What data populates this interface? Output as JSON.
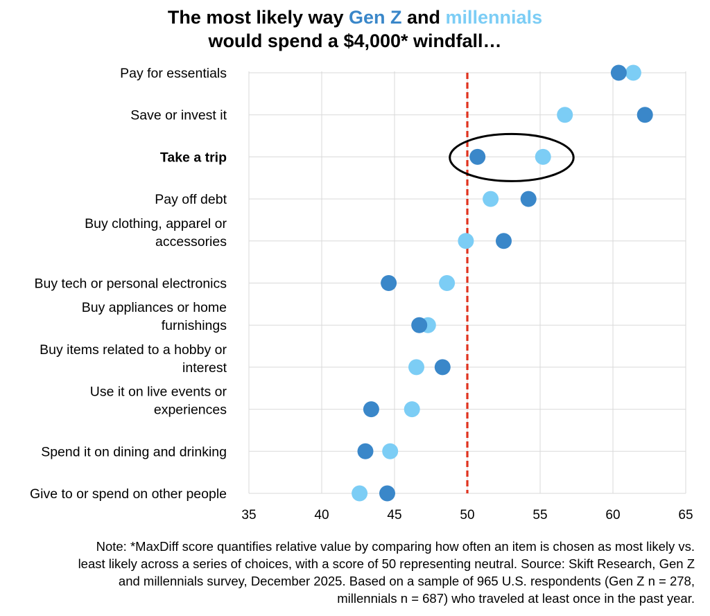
{
  "title": {
    "line1_prefix": "The most likely way ",
    "genz": "Gen Z",
    "and": " and ",
    "millennials": "millennials",
    "line2": "would spend a $4,000* windfall…"
  },
  "colors": {
    "genz": "#3A87C9",
    "millennials": "#7CCDF5",
    "neutral_line": "#E0321E",
    "grid": "#D9D9D9"
  },
  "chart_data": {
    "type": "scatter",
    "title": "The most likely way Gen Z and millennials would spend a $4,000* windfall…",
    "xlim": [
      35,
      65
    ],
    "xticks": [
      "35",
      "40",
      "45",
      "50",
      "55",
      "60",
      "65"
    ],
    "grid": true,
    "neutral_line": 50,
    "highlight_category": "Take a trip",
    "categories": [
      [
        "Pay for essentials"
      ],
      [
        "Save or invest it"
      ],
      [
        "Take a trip"
      ],
      [
        "Pay off debt"
      ],
      [
        "Buy clothing, apparel or",
        "accessories"
      ],
      [
        "Buy tech or personal electronics"
      ],
      [
        "Buy appliances or home",
        "furnishings"
      ],
      [
        "Buy items related to a hobby or",
        "interest"
      ],
      [
        "Use it on live events or",
        "experiences"
      ],
      [
        "Spend it on dining and drinking"
      ],
      [
        "Give to or spend on other people"
      ]
    ],
    "series": [
      {
        "name": "millennials",
        "color": "#7CCDF5",
        "values": [
          61.4,
          56.7,
          55.2,
          51.6,
          49.9,
          48.6,
          47.3,
          46.5,
          46.2,
          44.7,
          42.6
        ]
      },
      {
        "name": "Gen Z",
        "color": "#3A87C9",
        "values": [
          60.4,
          62.2,
          50.7,
          54.2,
          52.5,
          44.6,
          46.7,
          48.3,
          43.4,
          43.0,
          44.5
        ]
      }
    ]
  },
  "note": [
    "Note: *MaxDiff score quantifies relative value by comparing how often an item is chosen as most likely vs.",
    "least likely across a series of choices, with a score of 50 representing neutral. Source: Skift Research, Gen Z",
    "and millennials survey, December 2025. Based on a sample of 965 U.S. respondents (Gen Z n = 278,",
    "millennials n = 687) who traveled at least once in the past year."
  ]
}
